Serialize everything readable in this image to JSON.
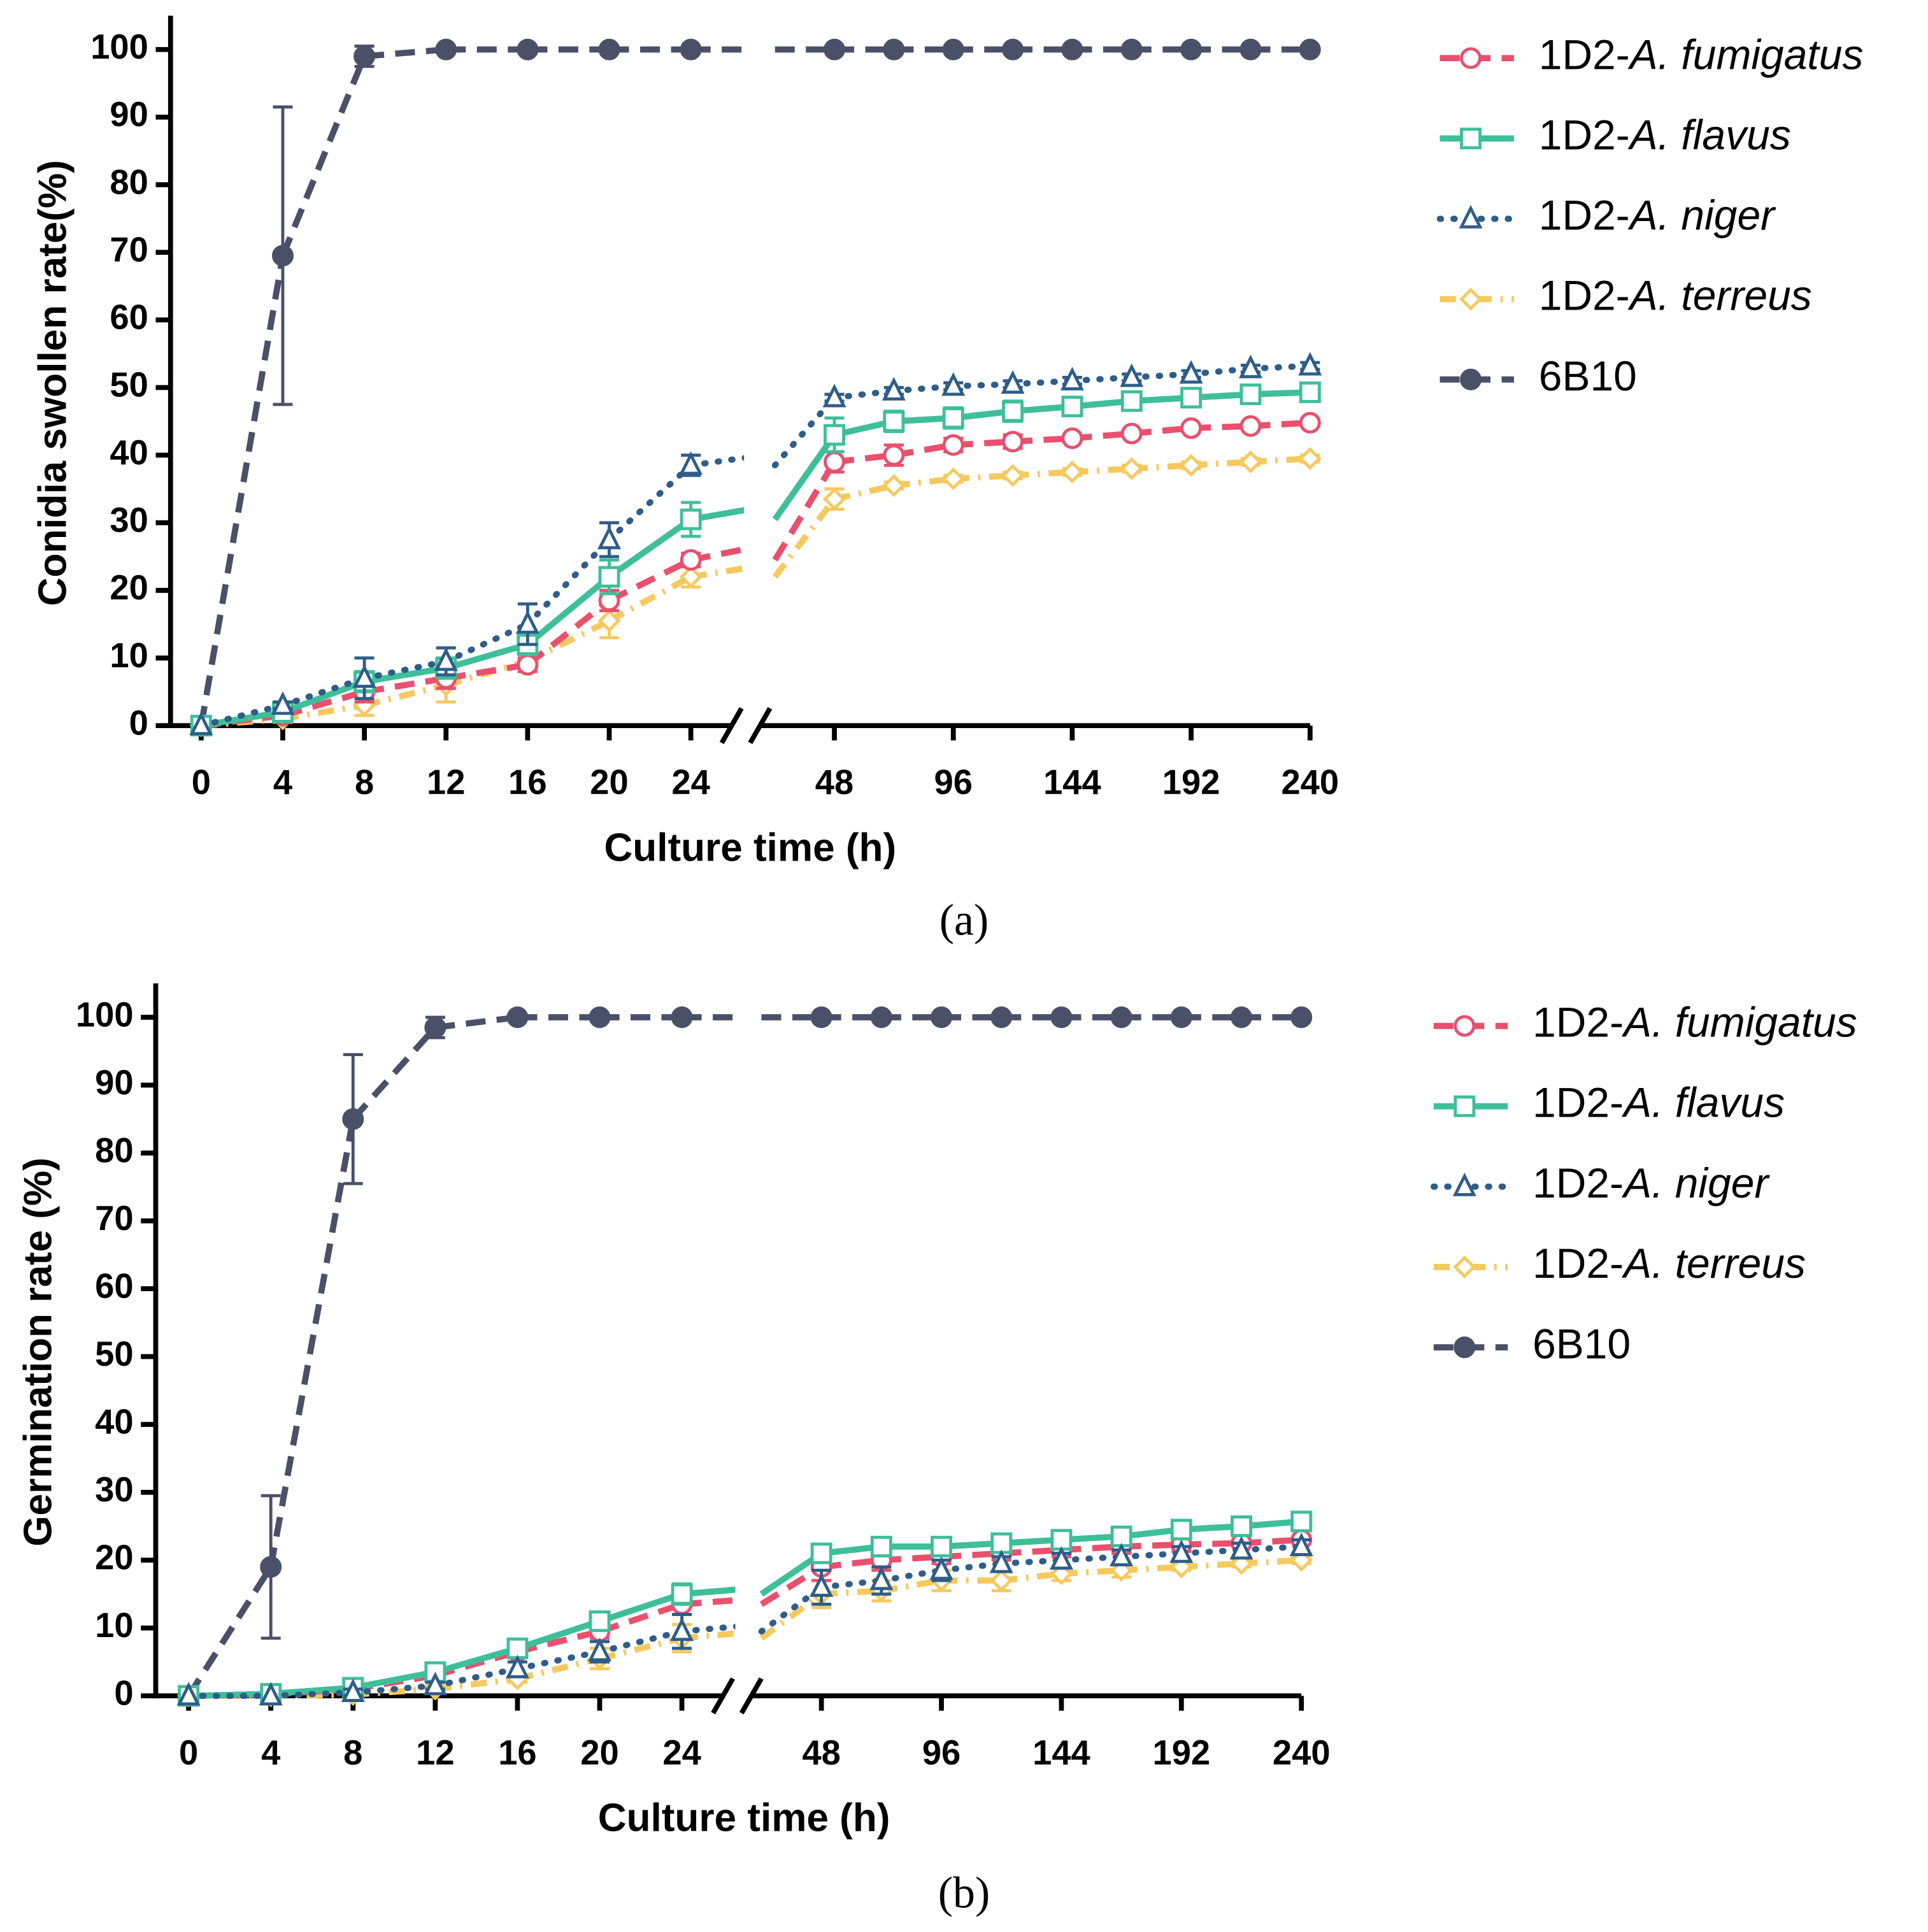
{
  "chart_data": [
    {
      "type": "line",
      "panel_label": "(a)",
      "ylabel": "Conidia swollen rate(%)",
      "xlabel": "Culture time (h)",
      "x": [
        0,
        4,
        8,
        12,
        16,
        20,
        24,
        48,
        72,
        96,
        120,
        144,
        168,
        192,
        216,
        240
      ],
      "xlim": [
        [
          -1.5,
          26
        ],
        [
          18,
          240
        ]
      ],
      "xticks": [
        0,
        4,
        8,
        12,
        16,
        20,
        24,
        48,
        96,
        144,
        192,
        240
      ],
      "ylim": [
        0,
        105
      ],
      "yticks": [
        0,
        10,
        20,
        30,
        40,
        50,
        60,
        70,
        80,
        90,
        100
      ],
      "series": [
        {
          "name": "1D2-A. fumigatus",
          "color": "#e8506e",
          "dash": "dashed",
          "marker": "open-circle",
          "values": [
            0,
            1.5,
            5,
            7,
            9,
            18.5,
            24.5,
            39,
            40,
            41.5,
            42,
            42.5,
            43.2,
            44,
            44.3,
            44.8
          ],
          "errors": [
            0,
            0.5,
            1.5,
            1.5,
            1,
            1.5,
            1,
            1.5,
            1.5,
            1,
            1,
            0.5,
            0.5,
            0.5,
            0.5,
            0.5
          ]
        },
        {
          "name": "1D2-A. flavus",
          "color": "#3ebf9a",
          "dash": "solid",
          "marker": "open-square",
          "values": [
            0,
            2,
            6.5,
            8.5,
            12,
            22,
            30.5,
            43,
            45,
            45.5,
            46.5,
            47.2,
            48,
            48.5,
            49,
            49.3
          ],
          "errors": [
            0,
            0.5,
            1.5,
            1.5,
            1.5,
            2.5,
            2.5,
            2.5,
            1.5,
            1.5,
            1.5,
            1,
            1,
            0.5,
            0.5,
            0.5
          ]
        },
        {
          "name": "1D2-A. niger",
          "color": "#2f5d8a",
          "dash": "dotted",
          "marker": "open-triangle",
          "values": [
            0,
            3,
            7,
            9.5,
            15,
            27.5,
            38.5,
            48.5,
            49.5,
            50.2,
            50.5,
            51,
            51.5,
            52,
            52.8,
            53.2
          ],
          "errors": [
            0,
            0.5,
            3,
            2,
            3,
            2.5,
            1.5,
            0.5,
            0.5,
            0.5,
            0.5,
            0.5,
            0.5,
            0.5,
            0.5,
            0.5
          ]
        },
        {
          "name": "1D2-A. terreus",
          "color": "#f6c95e",
          "dash": "dashdot",
          "marker": "open-diamond",
          "values": [
            0,
            1,
            3,
            6,
            9.5,
            15.5,
            22,
            33.5,
            35.5,
            36.5,
            37,
            37.5,
            38,
            38.5,
            39,
            39.5
          ],
          "errors": [
            0,
            0.5,
            1.5,
            2.5,
            1.5,
            2.5,
            1.5,
            1.5,
            0.5,
            0.5,
            0.5,
            0.5,
            0.5,
            0.5,
            0.5,
            0.5
          ]
        },
        {
          "name": "6B10",
          "color": "#4a5068",
          "dash": "dashed",
          "marker": "filled-circle",
          "values": [
            0,
            69.5,
            99,
            100,
            100,
            100,
            100,
            100,
            100,
            100,
            100,
            100,
            100,
            100,
            100,
            100
          ],
          "errors": [
            0,
            22,
            1.5,
            0,
            0,
            0,
            0,
            0,
            0,
            0,
            0,
            0,
            0,
            0,
            0,
            0
          ]
        }
      ]
    },
    {
      "type": "line",
      "panel_label": "(b)",
      "ylabel": "Germination rate (%)",
      "xlabel": "Culture time (h)",
      "x": [
        0,
        4,
        8,
        12,
        16,
        20,
        24,
        48,
        72,
        96,
        120,
        144,
        168,
        192,
        216,
        240
      ],
      "xlim": [
        [
          -1.6,
          26
        ],
        [
          20,
          240
        ]
      ],
      "xticks": [
        0,
        4,
        8,
        12,
        16,
        20,
        24,
        48,
        96,
        144,
        192,
        240
      ],
      "ylim": [
        0,
        105
      ],
      "yticks": [
        0,
        10,
        20,
        30,
        40,
        50,
        60,
        70,
        80,
        90,
        100
      ],
      "series": [
        {
          "name": "1D2-A. fumigatus",
          "color": "#e8506e",
          "dash": "dashed",
          "marker": "open-circle",
          "values": [
            0,
            0.2,
            1,
            3,
            6.5,
            9.5,
            13.5,
            19,
            20,
            20.5,
            21,
            21.5,
            22,
            22.3,
            22.5,
            23
          ],
          "errors": [
            0,
            0.2,
            0.5,
            0.5,
            0.5,
            1,
            1.5,
            2,
            1.5,
            1,
            1,
            1,
            1,
            1,
            0.5,
            0.5
          ]
        },
        {
          "name": "1D2-A. flavus",
          "color": "#3ebf9a",
          "dash": "solid",
          "marker": "open-square",
          "values": [
            0,
            0.3,
            1.2,
            3.5,
            7,
            11,
            15,
            21,
            22,
            22,
            22.5,
            23,
            23.5,
            24.5,
            25,
            25.7
          ],
          "errors": [
            0,
            0.2,
            0.5,
            0.5,
            0.5,
            1,
            1.5,
            1,
            1,
            0.5,
            0.5,
            0.5,
            0.5,
            0.5,
            0.5,
            0.5
          ]
        },
        {
          "name": "1D2-A. niger",
          "color": "#2f5d8a",
          "dash": "dotted",
          "marker": "open-triangle",
          "values": [
            0,
            0,
            0.5,
            1.5,
            4,
            6.5,
            9.5,
            16,
            17,
            18.5,
            19.5,
            20,
            20.5,
            21,
            21.5,
            22
          ],
          "errors": [
            0,
            0,
            0.5,
            0.5,
            1,
            1.5,
            2.5,
            2.5,
            2,
            1.5,
            1,
            1,
            1,
            1,
            1,
            1
          ]
        },
        {
          "name": "1D2-A. terreus",
          "color": "#f6c95e",
          "dash": "dashdot",
          "marker": "open-diamond",
          "values": [
            0,
            0,
            0.2,
            1,
            2.5,
            5.5,
            8.5,
            15,
            15.5,
            17,
            17,
            18,
            18.5,
            19,
            19.5,
            20
          ],
          "errors": [
            0,
            0,
            0.2,
            0.5,
            0.5,
            1.5,
            2,
            2,
            1.5,
            1.5,
            1.5,
            1,
            1,
            0.5,
            0.5,
            0.5
          ]
        },
        {
          "name": "6B10",
          "color": "#4a5068",
          "dash": "dashed",
          "marker": "filled-circle",
          "values": [
            0,
            19,
            85,
            98.5,
            100,
            100,
            100,
            100,
            100,
            100,
            100,
            100,
            100,
            100,
            100,
            100
          ],
          "errors": [
            0,
            10.5,
            9.5,
            1.5,
            0,
            0,
            0,
            0,
            0,
            0,
            0,
            0,
            0,
            0,
            0,
            0
          ]
        }
      ]
    }
  ]
}
